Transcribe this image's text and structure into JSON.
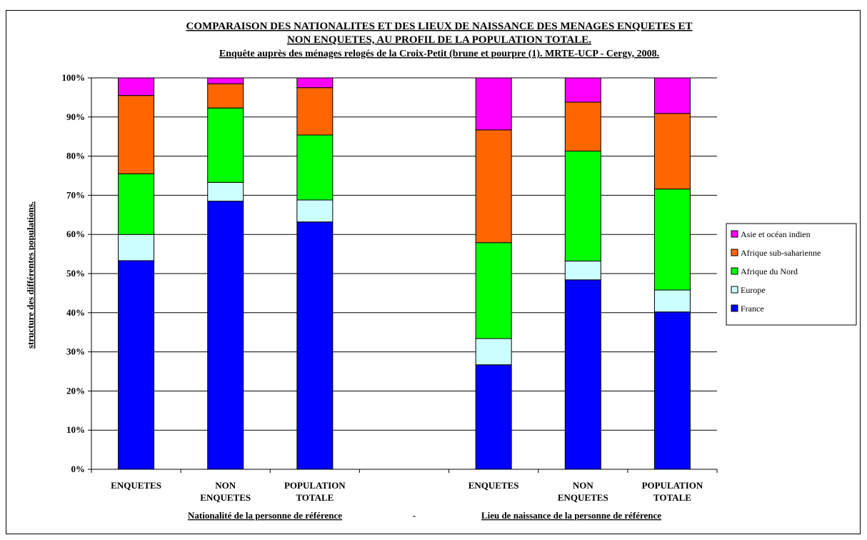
{
  "chart_data": {
    "type": "bar",
    "stacked": true,
    "title_line1": "COMPARAISON DES NATIONALITES ET DES LIEUX DE NAISSANCE DES MENAGES ENQUETES ET",
    "title_line2": "NON ENQUETES, AU PROFIL DE LA POPULATION TOTALE.",
    "subtitle": "Enquête auprès des ménages relogés de la Croix-Petit (brune et pourpre (1). MRTE-UCP - Cergy, 2008.",
    "ylabel": "structure des différentes populations.",
    "ylim": [
      0,
      100
    ],
    "yticks": [
      "0%",
      "10%",
      "20%",
      "30%",
      "40%",
      "50%",
      "60%",
      "70%",
      "80%",
      "90%",
      "100%"
    ],
    "categories": [
      [
        "ENQUETES"
      ],
      [
        "NON",
        "ENQUETES"
      ],
      [
        "POPULATION",
        "TOTALE"
      ],
      [],
      [
        "ENQUETES"
      ],
      [
        "NON",
        "ENQUETES"
      ],
      [
        "POPULATION",
        "TOTALE"
      ]
    ],
    "group_labels": {
      "left": "Nationalité de la personne de référence",
      "separator": "-",
      "right": "Lieu de naissance de la personne de référence"
    },
    "series": [
      {
        "name": "France",
        "color": "#0000FF",
        "values": [
          53.3,
          68.5,
          63.2,
          null,
          26.7,
          48.4,
          40.2
        ]
      },
      {
        "name": "Europe",
        "color": "#CCFFFF",
        "values": [
          6.7,
          4.8,
          5.6,
          null,
          6.7,
          4.8,
          5.6
        ]
      },
      {
        "name": "Afrique du Nord",
        "color": "#00FF00",
        "values": [
          15.5,
          19.0,
          16.6,
          null,
          24.5,
          28.1,
          25.8
        ]
      },
      {
        "name": "Afrique sub-saharienne",
        "color": "#FF6600",
        "values": [
          20.0,
          6.2,
          12.1,
          null,
          28.8,
          12.5,
          19.3
        ]
      },
      {
        "name": "Asie et océan indien",
        "color": "#FF00FF",
        "values": [
          4.5,
          1.5,
          2.5,
          null,
          13.3,
          6.2,
          9.1
        ]
      }
    ],
    "legend_order": [
      "Asie et océan indien",
      "Afrique sub-saharienne",
      "Afrique du Nord",
      "Europe",
      "France"
    ],
    "legend_position": "right",
    "grid": true
  }
}
